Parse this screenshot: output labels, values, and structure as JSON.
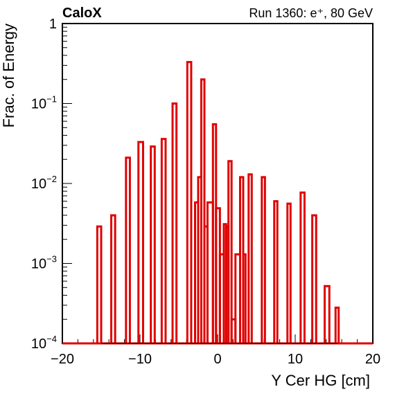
{
  "chart_data": {
    "type": "line",
    "title_left": "CaloX",
    "title_right": "Run 1360: e⁺, 80 GeV",
    "xlabel": "Y Cer HG [cm]",
    "ylabel": "Frac. of Energy",
    "xlim": [
      -20,
      20
    ],
    "ylim": [
      0.0001,
      1
    ],
    "yscale": "log",
    "grid": false,
    "x_ticks": [
      "−20",
      "−10",
      "0",
      "10",
      "20"
    ],
    "y_ticks": [
      {
        "base": "1",
        "exp": ""
      },
      {
        "base": "10",
        "exp": "−1"
      },
      {
        "base": "10",
        "exp": "−2"
      },
      {
        "base": "10",
        "exp": "−3"
      },
      {
        "base": "10",
        "exp": "−4"
      }
    ],
    "series": [
      {
        "color": "#e00000",
        "bins": [
          {
            "lo": -15.5,
            "hi": -15.0,
            "y": 0.0029
          },
          {
            "lo": -13.7,
            "hi": -13.2,
            "y": 0.004
          },
          {
            "lo": -11.8,
            "hi": -11.3,
            "y": 0.021
          },
          {
            "lo": -10.2,
            "hi": -9.6,
            "y": 0.033
          },
          {
            "lo": -8.6,
            "hi": -8.1,
            "y": 0.029
          },
          {
            "lo": -7.2,
            "hi": -6.7,
            "y": 0.036
          },
          {
            "lo": -5.8,
            "hi": -5.3,
            "y": 0.1
          },
          {
            "lo": -3.9,
            "hi": -3.4,
            "y": 0.33
          },
          {
            "lo": -3.4,
            "hi": -2.9,
            "y": 0.0001
          },
          {
            "lo": -2.9,
            "hi": -2.5,
            "y": 0.0058
          },
          {
            "lo": -2.5,
            "hi": -2.1,
            "y": 0.012
          },
          {
            "lo": -2.1,
            "hi": -1.7,
            "y": 0.2
          },
          {
            "lo": -1.7,
            "hi": -1.3,
            "y": 0.0029
          },
          {
            "lo": -1.3,
            "hi": -0.6,
            "y": 0.0058
          },
          {
            "lo": -0.6,
            "hi": -0.2,
            "y": 0.055
          },
          {
            "lo": -0.2,
            "hi": 0.3,
            "y": 0.0049
          },
          {
            "lo": 0.3,
            "hi": 0.8,
            "y": 0.0013
          },
          {
            "lo": 0.8,
            "hi": 1.1,
            "y": 0.0031
          },
          {
            "lo": 1.1,
            "hi": 1.4,
            "y": 0.0029
          },
          {
            "lo": 1.4,
            "hi": 1.8,
            "y": 0.019
          },
          {
            "lo": 1.8,
            "hi": 2.3,
            "y": 0.0002
          },
          {
            "lo": 2.3,
            "hi": 2.9,
            "y": 0.0013
          },
          {
            "lo": 2.9,
            "hi": 3.3,
            "y": 0.012
          },
          {
            "lo": 3.3,
            "hi": 3.6,
            "y": 0.0013
          },
          {
            "lo": 4.0,
            "hi": 4.4,
            "y": 0.013
          },
          {
            "lo": 5.7,
            "hi": 6.1,
            "y": 0.012
          },
          {
            "lo": 7.3,
            "hi": 7.7,
            "y": 0.006
          },
          {
            "lo": 9.0,
            "hi": 9.4,
            "y": 0.0056
          },
          {
            "lo": 10.7,
            "hi": 11.2,
            "y": 0.0077
          },
          {
            "lo": 12.2,
            "hi": 12.7,
            "y": 0.004
          },
          {
            "lo": 13.8,
            "hi": 14.4,
            "y": 0.00052
          },
          {
            "lo": 15.2,
            "hi": 15.6,
            "y": 0.00028
          }
        ]
      }
    ]
  }
}
